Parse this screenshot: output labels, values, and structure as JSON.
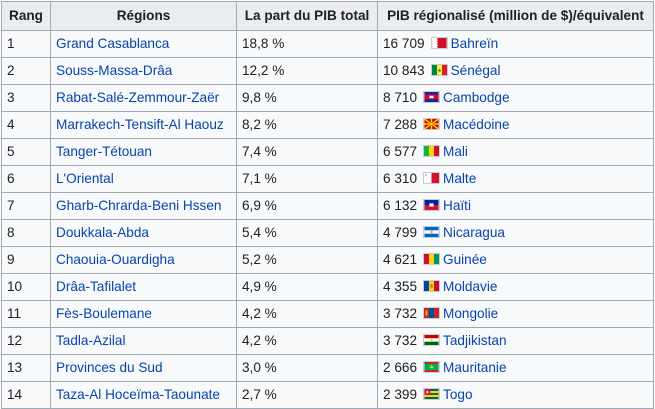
{
  "headers": {
    "rang": "Rang",
    "regions": "Régions",
    "part": "La part du PIB total",
    "pib": "PIB régionalisé (million de $)/équivalent"
  },
  "rows": [
    {
      "rang": "1",
      "region": "Grand Casablanca",
      "part": "18,8 %",
      "pib": "16 709",
      "country": "Bahreïn",
      "flag_icon": "bahrain-flag-icon"
    },
    {
      "rang": "2",
      "region": "Souss-Massa-Drâa",
      "part": "12,2 %",
      "pib": "10 843",
      "country": "Sénégal",
      "flag_icon": "senegal-flag-icon"
    },
    {
      "rang": "3",
      "region": "Rabat-Salé-Zemmour-Zaër",
      "part": "9,8 %",
      "pib": "8 710",
      "country": "Cambodge",
      "flag_icon": "cambodia-flag-icon"
    },
    {
      "rang": "4",
      "region": "Marrakech-Tensift-Al Haouz",
      "part": "8,2 %",
      "pib": "7 288",
      "country": "Macédoine",
      "flag_icon": "macedonia-flag-icon"
    },
    {
      "rang": "5",
      "region": "Tanger-Tétouan",
      "part": "7,4 %",
      "pib": "6 577",
      "country": "Mali",
      "flag_icon": "mali-flag-icon"
    },
    {
      "rang": "6",
      "region": "L'Oriental",
      "part": "7,1 %",
      "pib": "6 310",
      "country": "Malte",
      "flag_icon": "malta-flag-icon"
    },
    {
      "rang": "7",
      "region": "Gharb-Chrarda-Beni Hssen",
      "part": "6,9 %",
      "pib": "6 132",
      "country": "Haïti",
      "flag_icon": "haiti-flag-icon"
    },
    {
      "rang": "8",
      "region": "Doukkala-Abda",
      "part": "5,4 %",
      "pib": "4 799",
      "country": "Nicaragua",
      "flag_icon": "nicaragua-flag-icon"
    },
    {
      "rang": "9",
      "region": "Chaouia-Ouardigha",
      "part": "5,2 %",
      "pib": "4 621",
      "country": "Guinée",
      "flag_icon": "guinea-flag-icon"
    },
    {
      "rang": "10",
      "region": "Drâa-Tafilalet",
      "part": "4,9 %",
      "pib": "4 355",
      "country": "Moldavie",
      "flag_icon": "moldova-flag-icon"
    },
    {
      "rang": "11",
      "region": "Fès-Boulemane",
      "part": "4,2 %",
      "pib": "3 732",
      "country": "Mongolie",
      "flag_icon": "mongolia-flag-icon"
    },
    {
      "rang": "12",
      "region": "Tadla-Azilal",
      "part": "4,2 %",
      "pib": "3 732",
      "country": "Tadjikistan",
      "flag_icon": "tajikistan-flag-icon"
    },
    {
      "rang": "13",
      "region": "Provinces du Sud",
      "part": "3,0 %",
      "pib": "2 666",
      "country": "Mauritanie",
      "flag_icon": "mauritania-flag-icon"
    },
    {
      "rang": "14",
      "region": "Taza-Al Hoceïma-Taounate",
      "part": "2,7 %",
      "pib": "2 399",
      "country": "Togo",
      "flag_icon": "togo-flag-icon"
    }
  ]
}
